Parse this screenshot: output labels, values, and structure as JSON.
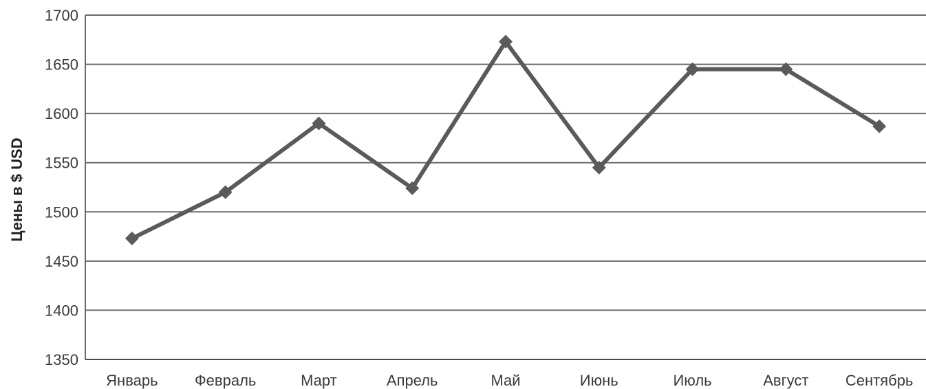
{
  "chart_data": {
    "type": "line",
    "title": "",
    "xlabel": "",
    "ylabel": "Цены в $ USD",
    "categories": [
      "Январь",
      "Февраль",
      "Март",
      "Апрель",
      "Май",
      "Июнь",
      "Июль",
      "Август",
      "Сентябрь"
    ],
    "series": [
      {
        "values": [
          1473,
          1520,
          1590,
          1524,
          1673,
          1545,
          1645,
          1645,
          1587
        ]
      }
    ],
    "ylim": [
      1350,
      1700
    ],
    "yticks": [
      1350,
      1400,
      1450,
      1500,
      1550,
      1600,
      1650,
      1700
    ],
    "grid": true,
    "legend": "none",
    "marker": "diamond",
    "line_color": "#5a5a5a",
    "grid_color": "#6b6b6b",
    "text_color": "#3a3a3a"
  }
}
